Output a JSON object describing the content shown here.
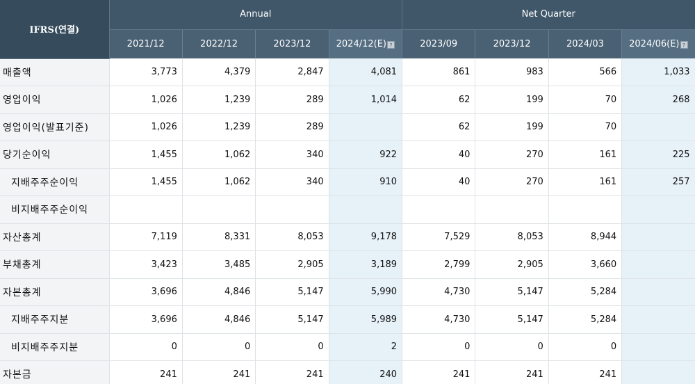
{
  "header": {
    "corner": "IFRS(연결)",
    "group_annual": "Annual",
    "group_quarter": "Net Quarter",
    "est_badge": "?",
    "columns": [
      "2021/12",
      "2022/12",
      "2023/12",
      "2024/12(E)",
      "2023/09",
      "2023/12",
      "2024/03",
      "2024/06(E)"
    ]
  },
  "rows": [
    {
      "label": "매출액",
      "values": [
        "3,773",
        "4,379",
        "2,847",
        "4,081",
        "861",
        "983",
        "566",
        "1,033"
      ]
    },
    {
      "label": "영업이익",
      "values": [
        "1,026",
        "1,239",
        "289",
        "1,014",
        "62",
        "199",
        "70",
        "268"
      ]
    },
    {
      "label": "영업이익(발표기준)",
      "values": [
        "1,026",
        "1,239",
        "289",
        "",
        "62",
        "199",
        "70",
        ""
      ]
    },
    {
      "label": "당기순이익",
      "values": [
        "1,455",
        "1,062",
        "340",
        "922",
        "40",
        "270",
        "161",
        "225"
      ]
    },
    {
      "label": "지배주주순이익",
      "values": [
        "1,455",
        "1,062",
        "340",
        "910",
        "40",
        "270",
        "161",
        "257"
      ]
    },
    {
      "label": "비지배주주순이익",
      "values": [
        "",
        "",
        "",
        "",
        "",
        "",
        "",
        ""
      ]
    },
    {
      "label": "자산총계",
      "values": [
        "7,119",
        "8,331",
        "8,053",
        "9,178",
        "7,529",
        "8,053",
        "8,944",
        ""
      ]
    },
    {
      "label": "부채총계",
      "values": [
        "3,423",
        "3,485",
        "2,905",
        "3,189",
        "2,799",
        "2,905",
        "3,660",
        ""
      ]
    },
    {
      "label": "자본총계",
      "values": [
        "3,696",
        "4,846",
        "5,147",
        "5,990",
        "4,730",
        "5,147",
        "5,284",
        ""
      ]
    },
    {
      "label": "지배주주지분",
      "values": [
        "3,696",
        "4,846",
        "5,147",
        "5,989",
        "4,730",
        "5,147",
        "5,284",
        ""
      ]
    },
    {
      "label": "비지배주주지분",
      "values": [
        "0",
        "0",
        "0",
        "2",
        "0",
        "0",
        "0",
        ""
      ]
    },
    {
      "label": "자본금",
      "values": [
        "241",
        "241",
        "241",
        "240",
        "241",
        "241",
        "241",
        ""
      ]
    }
  ]
}
